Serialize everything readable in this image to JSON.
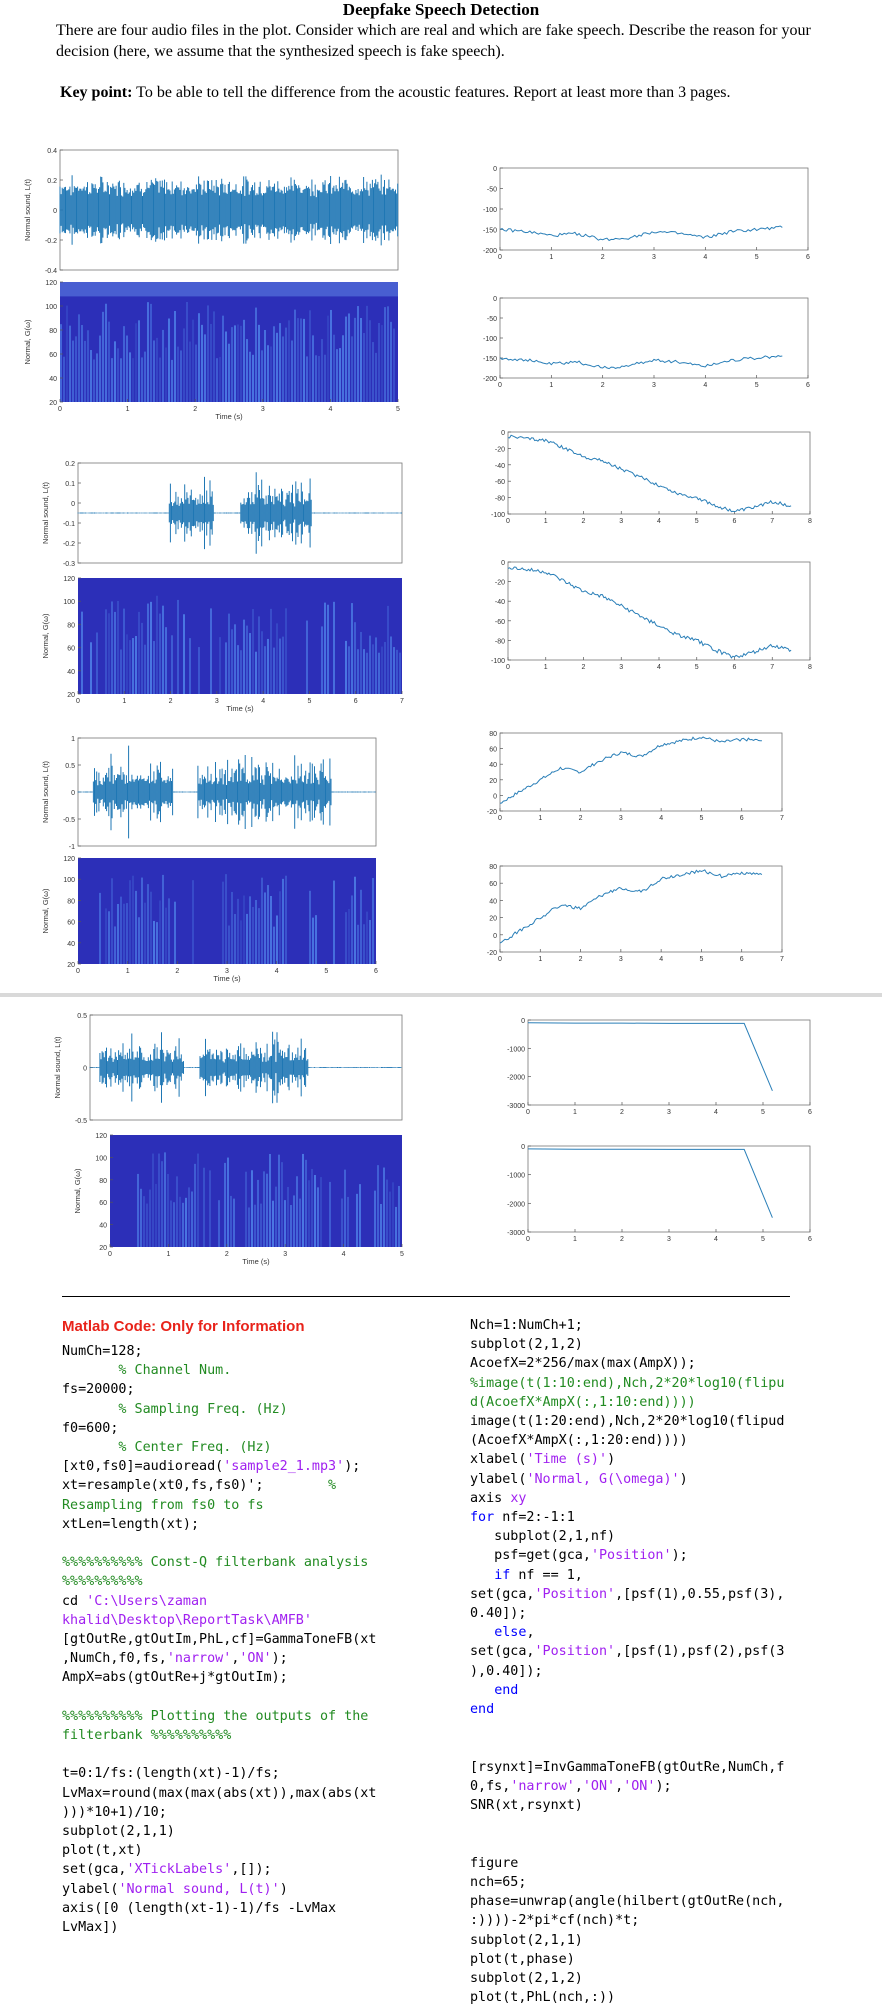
{
  "title": "Deepfake Speech Detection",
  "intro": "There are four audio files in the plot. Consider which are real and which are fake speech. Describe the reason for your decision (here, we assume that the synthesized speech is fake speech).",
  "key_point_label": "Key point:",
  "key_point_text": " To be able to tell the difference from the acoustic features. Report at least more than 3 pages.",
  "chart_data": [
    {
      "type": "line",
      "panel": "sample-1-waveform",
      "ylabel": "Normal sound, L(t)",
      "ylim": [
        -0.4,
        0.4
      ],
      "yticks": [
        "0.4",
        "0.2",
        "0",
        "-0.2",
        "-0.4"
      ]
    },
    {
      "type": "heatmap",
      "panel": "sample-1-spectrogram",
      "ylabel": "Normal, G(ω)",
      "xlabel": "Time (s)",
      "yticks": [
        "120",
        "100",
        "80",
        "60",
        "40",
        "20"
      ],
      "xticks": [
        "0",
        "1",
        "2",
        "3",
        "4",
        "5"
      ]
    },
    {
      "type": "line",
      "panel": "sample-1-phase-a",
      "ylim": [
        -200,
        0
      ],
      "yticks": [
        "0",
        "-50",
        "-100",
        "-150",
        "-200"
      ],
      "xticks": [
        "0",
        "1",
        "2",
        "3",
        "4",
        "5",
        "6"
      ],
      "x": [
        0,
        0.5,
        1,
        1.5,
        2,
        2.5,
        3,
        3.5,
        4,
        4.5,
        5,
        5.5
      ],
      "y": [
        -150,
        -155,
        -165,
        -160,
        -175,
        -170,
        -155,
        -160,
        -170,
        -155,
        -150,
        -145
      ]
    },
    {
      "type": "line",
      "panel": "sample-1-phase-b",
      "ylim": [
        -200,
        0
      ],
      "yticks": [
        "0",
        "-50",
        "-100",
        "-150",
        "-200"
      ],
      "xticks": [
        "0",
        "1",
        "2",
        "3",
        "4",
        "5",
        "6"
      ],
      "x": [
        0,
        0.5,
        1,
        1.5,
        2,
        2.5,
        3,
        3.5,
        4,
        4.5,
        5,
        5.5
      ],
      "y": [
        -150,
        -155,
        -165,
        -160,
        -175,
        -170,
        -155,
        -160,
        -170,
        -155,
        -150,
        -145
      ]
    },
    {
      "type": "line",
      "panel": "sample-2-waveform",
      "ylabel": "Normal sound, L(t)",
      "ylim": [
        -0.3,
        0.3
      ],
      "yticks": [
        "0.2",
        "0.1",
        "0",
        "-0.1",
        "-0.2",
        "-0.3"
      ]
    },
    {
      "type": "heatmap",
      "panel": "sample-2-spectrogram",
      "ylabel": "Normal, G(ω)",
      "xlabel": "Time (s)",
      "yticks": [
        "120",
        "100",
        "80",
        "60",
        "40",
        "20"
      ],
      "xticks": [
        "0",
        "1",
        "2",
        "3",
        "4",
        "5",
        "6",
        "7"
      ]
    },
    {
      "type": "line",
      "panel": "sample-2-phase-a",
      "ylim": [
        -100,
        0
      ],
      "yticks": [
        "0",
        "-20",
        "-40",
        "-60",
        "-80",
        "-100"
      ],
      "xticks": [
        "0",
        "1",
        "2",
        "3",
        "4",
        "5",
        "6",
        "7",
        "8"
      ],
      "x": [
        0,
        0.5,
        1,
        1.5,
        2,
        2.5,
        3,
        3.5,
        4,
        4.5,
        5,
        5.5,
        6,
        6.5,
        7,
        7.5
      ],
      "y": [
        -5,
        -8,
        -10,
        -20,
        -30,
        -35,
        -45,
        -55,
        -65,
        -75,
        -80,
        -90,
        -97,
        -92,
        -85,
        -90
      ]
    },
    {
      "type": "line",
      "panel": "sample-2-phase-b",
      "ylim": [
        -100,
        0
      ],
      "yticks": [
        "0",
        "-20",
        "-40",
        "-60",
        "-80",
        "-100"
      ],
      "xticks": [
        "0",
        "1",
        "2",
        "3",
        "4",
        "5",
        "6",
        "7",
        "8"
      ],
      "x": [
        0,
        0.5,
        1,
        1.5,
        2,
        2.5,
        3,
        3.5,
        4,
        4.5,
        5,
        5.5,
        6,
        6.5,
        7,
        7.5
      ],
      "y": [
        -5,
        -8,
        -10,
        -20,
        -30,
        -35,
        -45,
        -55,
        -65,
        -75,
        -80,
        -90,
        -97,
        -92,
        -85,
        -90
      ]
    },
    {
      "type": "line",
      "panel": "sample-3-waveform",
      "ylabel": "Normal sound, L(t)",
      "ylim": [
        -1.5,
        1.5
      ],
      "yticks": [
        "1",
        "0.5",
        "0",
        "-0.5",
        "-1"
      ]
    },
    {
      "type": "heatmap",
      "panel": "sample-3-spectrogram",
      "ylabel": "Normal, G(ω)",
      "xlabel": "Time (s)",
      "yticks": [
        "120",
        "100",
        "80",
        "60",
        "40",
        "20"
      ],
      "xticks": [
        "0",
        "1",
        "2",
        "3",
        "4",
        "5",
        "6"
      ]
    },
    {
      "type": "line",
      "panel": "sample-3-phase-a",
      "ylim": [
        -20,
        80
      ],
      "yticks": [
        "80",
        "60",
        "40",
        "20",
        "0",
        "-20"
      ],
      "xticks": [
        "0",
        "1",
        "2",
        "3",
        "4",
        "5",
        "6",
        "7"
      ],
      "x": [
        0,
        0.5,
        1,
        1.5,
        2,
        2.5,
        3,
        3.5,
        4,
        4.5,
        5,
        5.5,
        6,
        6.5
      ],
      "y": [
        -10,
        5,
        20,
        35,
        30,
        45,
        55,
        50,
        65,
        70,
        75,
        68,
        72,
        70
      ]
    },
    {
      "type": "line",
      "panel": "sample-3-phase-b",
      "ylim": [
        -20,
        80
      ],
      "yticks": [
        "80",
        "60",
        "40",
        "20",
        "0",
        "-20"
      ],
      "xticks": [
        "0",
        "1",
        "2",
        "3",
        "4",
        "5",
        "6",
        "7"
      ],
      "x": [
        0,
        0.5,
        1,
        1.5,
        2,
        2.5,
        3,
        3.5,
        4,
        4.5,
        5,
        5.5,
        6,
        6.5
      ],
      "y": [
        -10,
        5,
        20,
        35,
        30,
        45,
        55,
        50,
        65,
        70,
        75,
        68,
        72,
        70
      ]
    },
    {
      "type": "line",
      "panel": "sample-4-waveform",
      "ylabel": "Normal sound, L(t)",
      "ylim": [
        -0.8,
        0.8
      ],
      "yticks": [
        "0.5",
        "0",
        "-0.5"
      ]
    },
    {
      "type": "heatmap",
      "panel": "sample-4-spectrogram",
      "ylabel": "Normal, G(ω)",
      "xlabel": "Time (s)",
      "yticks": [
        "120",
        "100",
        "80",
        "60",
        "40",
        "20"
      ],
      "xticks": [
        "0",
        "1",
        "2",
        "3",
        "4",
        "5"
      ]
    },
    {
      "type": "line",
      "panel": "sample-4-phase-a",
      "ylim": [
        -3000,
        0
      ],
      "yticks": [
        "0",
        "-1000",
        "-2000",
        "-3000"
      ],
      "xticks": [
        "0",
        "1",
        "2",
        "3",
        "4",
        "5",
        "6"
      ],
      "x": [
        0,
        1,
        2,
        3,
        4,
        4.6,
        5.2
      ],
      "y": [
        -100,
        -110,
        -110,
        -120,
        -120,
        -120,
        -2500
      ]
    },
    {
      "type": "line",
      "panel": "sample-4-phase-b",
      "ylim": [
        -3000,
        0
      ],
      "yticks": [
        "0",
        "-1000",
        "-2000",
        "-3000"
      ],
      "xticks": [
        "0",
        "1",
        "2",
        "3",
        "4",
        "5",
        "6"
      ],
      "x": [
        0,
        1,
        2,
        3,
        4,
        4.6,
        5.2
      ],
      "y": [
        -100,
        -110,
        -110,
        -120,
        -120,
        -120,
        -2500
      ]
    }
  ],
  "code_heading": "Matlab Code: Only for Information",
  "code_left": [
    [
      {
        "t": "NumCh=128;"
      }
    ],
    [
      {
        "t": "       % Channel Num.",
        "c": "c"
      }
    ],
    [
      {
        "t": "fs=20000;"
      }
    ],
    [
      {
        "t": "       % Sampling Freq. (Hz)",
        "c": "c"
      }
    ],
    [
      {
        "t": "f0=600;"
      }
    ],
    [
      {
        "t": "       % Center Freq. (Hz)",
        "c": "c"
      }
    ],
    [
      {
        "t": "[xt0,fs0]=audioread("
      },
      {
        "t": "'sample2_1.mp3'",
        "c": "s"
      },
      {
        "t": ");"
      }
    ],
    [
      {
        "t": "xt=resample(xt0,fs,fs0)';        "
      },
      {
        "t": "%",
        "c": "c"
      }
    ],
    [
      {
        "t": "Resampling from fs0 to fs",
        "c": "c"
      }
    ],
    [
      {
        "t": "xtLen=length(xt);"
      }
    ],
    [
      {
        "t": ""
      }
    ],
    [
      {
        "t": "%%%%%%%%%% Const-Q filterbank analysis",
        "c": "c"
      }
    ],
    [
      {
        "t": "%%%%%%%%%%",
        "c": "c"
      }
    ],
    [
      {
        "t": "cd "
      },
      {
        "t": "'C:\\Users\\zaman",
        "c": "s"
      }
    ],
    [
      {
        "t": "khalid\\Desktop\\ReportTask\\AMFB'",
        "c": "s"
      }
    ],
    [
      {
        "t": "[gtOutRe,gtOutIm,PhL,cf]=GammaToneFB(xt"
      }
    ],
    [
      {
        "t": ",NumCh,f0,fs,"
      },
      {
        "t": "'narrow'",
        "c": "s"
      },
      {
        "t": ","
      },
      {
        "t": "'ON'",
        "c": "s"
      },
      {
        "t": ");"
      }
    ],
    [
      {
        "t": "AmpX=abs(gtOutRe+j*gtOutIm);"
      }
    ],
    [
      {
        "t": ""
      }
    ],
    [
      {
        "t": "%%%%%%%%%% Plotting the outputs of the",
        "c": "c"
      }
    ],
    [
      {
        "t": "filterbank %%%%%%%%%%",
        "c": "c"
      }
    ],
    [
      {
        "t": ""
      }
    ],
    [
      {
        "t": "t=0:1/fs:(length(xt)-1)/fs;"
      }
    ],
    [
      {
        "t": "LvMax=round(max(max(abs(xt)),max(abs(xt"
      }
    ],
    [
      {
        "t": ")))*10+1)/10;"
      }
    ],
    [
      {
        "t": "subplot(2,1,1)"
      }
    ],
    [
      {
        "t": "plot(t,xt)"
      }
    ],
    [
      {
        "t": "set(gca,"
      },
      {
        "t": "'XTickLabels'",
        "c": "s"
      },
      {
        "t": ",[]);"
      }
    ],
    [
      {
        "t": "ylabel("
      },
      {
        "t": "'Normal sound, L(t)'",
        "c": "s"
      },
      {
        "t": ")"
      }
    ],
    [
      {
        "t": "axis([0 (length(xt-1)-1)/fs -LvMax"
      }
    ],
    [
      {
        "t": "LvMax])"
      }
    ]
  ],
  "code_right": [
    [
      {
        "t": "Nch=1:NumCh+1;"
      }
    ],
    [
      {
        "t": "subplot(2,1,2)"
      }
    ],
    [
      {
        "t": "AcoefX=2*256/max(max(AmpX));"
      }
    ],
    [
      {
        "t": "%image(t(1:10:end),Nch,2*20*log10(flipu",
        "c": "c"
      }
    ],
    [
      {
        "t": "d(AcoefX*AmpX(:,1:10:end))))",
        "c": "c"
      }
    ],
    [
      {
        "t": "image(t(1:20:end),Nch,2*20*log10(flipud"
      }
    ],
    [
      {
        "t": "(AcoefX*AmpX(:,1:20:end))))"
      }
    ],
    [
      {
        "t": "xlabel("
      },
      {
        "t": "'Time (s)'",
        "c": "s"
      },
      {
        "t": ")"
      }
    ],
    [
      {
        "t": "ylabel("
      },
      {
        "t": "'Normal, G(\\omega)'",
        "c": "s"
      },
      {
        "t": ")"
      }
    ],
    [
      {
        "t": "axis "
      },
      {
        "t": "xy",
        "c": "s"
      }
    ],
    [
      {
        "t": "for",
        "c": "k"
      },
      {
        "t": " nf=2:-1:1"
      }
    ],
    [
      {
        "t": "   subplot(2,1,nf)"
      }
    ],
    [
      {
        "t": "   psf=get(gca,"
      },
      {
        "t": "'Position'",
        "c": "s"
      },
      {
        "t": ");"
      }
    ],
    [
      {
        "t": "   "
      },
      {
        "t": "if",
        "c": "k"
      },
      {
        "t": " nf == 1,"
      }
    ],
    [
      {
        "t": "set(gca,"
      },
      {
        "t": "'Position'",
        "c": "s"
      },
      {
        "t": ",[psf(1),0.55,psf(3),"
      }
    ],
    [
      {
        "t": "0.40]);"
      }
    ],
    [
      {
        "t": "   "
      },
      {
        "t": "else",
        "c": "k"
      },
      {
        "t": ","
      }
    ],
    [
      {
        "t": "set(gca,"
      },
      {
        "t": "'Position'",
        "c": "s"
      },
      {
        "t": ",[psf(1),psf(2),psf(3"
      }
    ],
    [
      {
        "t": "),0.40]);"
      }
    ],
    [
      {
        "t": "   "
      },
      {
        "t": "end",
        "c": "k"
      }
    ],
    [
      {
        "t": "end",
        "c": "k"
      }
    ],
    [
      {
        "t": ""
      }
    ],
    [
      {
        "t": ""
      }
    ],
    [
      {
        "t": "[rsynxt]=InvGammaToneFB(gtOutRe,NumCh,f"
      }
    ],
    [
      {
        "t": "0,fs,"
      },
      {
        "t": "'narrow'",
        "c": "s"
      },
      {
        "t": ","
      },
      {
        "t": "'ON'",
        "c": "s"
      },
      {
        "t": ","
      },
      {
        "t": "'ON'",
        "c": "s"
      },
      {
        "t": ");"
      }
    ],
    [
      {
        "t": "SNR(xt,rsynxt)"
      }
    ],
    [
      {
        "t": ""
      }
    ],
    [
      {
        "t": ""
      }
    ],
    [
      {
        "t": "figure"
      }
    ],
    [
      {
        "t": "nch=65;"
      }
    ],
    [
      {
        "t": "phase=unwrap(angle(hilbert(gtOutRe(nch,"
      }
    ],
    [
      {
        "t": ":))))-2*pi*cf(nch)*t;"
      }
    ],
    [
      {
        "t": "subplot(2,1,1)"
      }
    ],
    [
      {
        "t": "plot(t,phase)"
      }
    ],
    [
      {
        "t": "subplot(2,1,2)"
      }
    ],
    [
      {
        "t": "plot(t,PhL(nch,:))"
      }
    ]
  ],
  "colors": {
    "waveform": "#1f77b4",
    "spectrogram_bg": "#2c2fb8",
    "spectrogram_hi": "#5fa8ff",
    "phase_line": "#2a7fb8",
    "heading_red": "#e8231a",
    "comment_green": "#228b22",
    "string_purple": "#a020f0",
    "keyword_blue": "#0000ff"
  }
}
